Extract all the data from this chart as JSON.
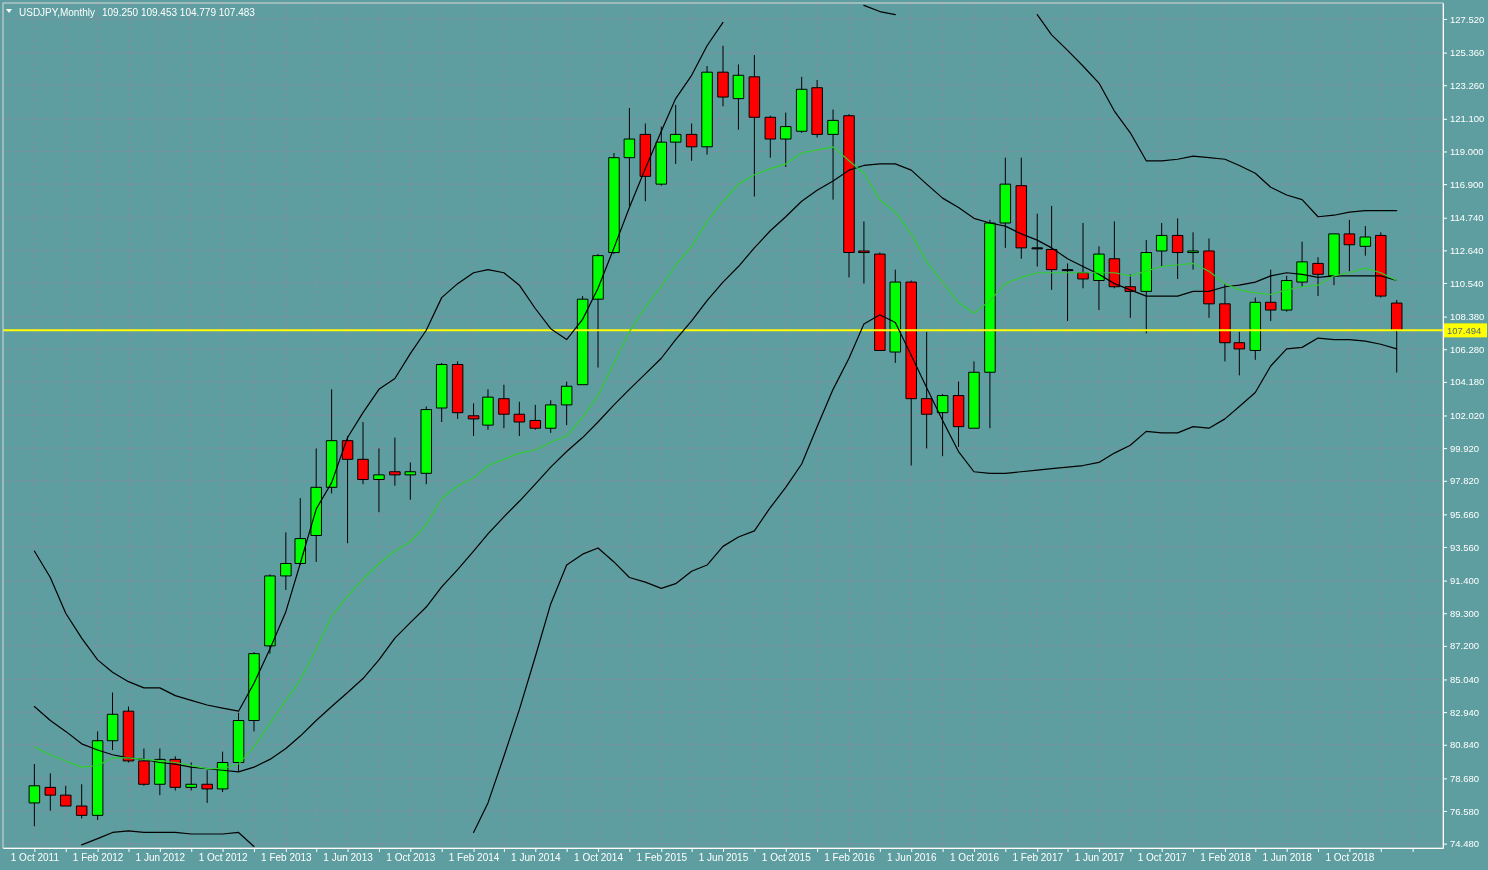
{
  "chart_data": {
    "type": "candlestick",
    "title": "USDJPY,Monthly",
    "subtitle": "109.250 109.453 104.779 107.483",
    "x": [
      "2011-10",
      "2011-11",
      "2011-12",
      "2012-01",
      "2012-02",
      "2012-03",
      "2012-04",
      "2012-05",
      "2012-06",
      "2012-07",
      "2012-08",
      "2012-09",
      "2012-10",
      "2012-11",
      "2012-12",
      "2013-01",
      "2013-02",
      "2013-03",
      "2013-04",
      "2013-05",
      "2013-06",
      "2013-07",
      "2013-08",
      "2013-09",
      "2013-10",
      "2013-11",
      "2013-12",
      "2014-01",
      "2014-02",
      "2014-03",
      "2014-04",
      "2014-05",
      "2014-06",
      "2014-07",
      "2014-08",
      "2014-09",
      "2014-10",
      "2014-11",
      "2014-12",
      "2015-01",
      "2015-02",
      "2015-03",
      "2015-04",
      "2015-05",
      "2015-06",
      "2015-07",
      "2015-08",
      "2015-09",
      "2015-10",
      "2015-11",
      "2015-12",
      "2016-01",
      "2016-02",
      "2016-03",
      "2016-04",
      "2016-05",
      "2016-06",
      "2016-07",
      "2016-08",
      "2016-09",
      "2016-10",
      "2016-11",
      "2016-12",
      "2017-01",
      "2017-02",
      "2017-03",
      "2017-04",
      "2017-05",
      "2017-06",
      "2017-07",
      "2017-08",
      "2017-09",
      "2017-10",
      "2017-11",
      "2017-12",
      "2018-01",
      "2018-02",
      "2018-03",
      "2018-04",
      "2018-05",
      "2018-06",
      "2018-07",
      "2018-08",
      "2018-09",
      "2018-10",
      "2018-11",
      "2018-12",
      "2019-01"
    ],
    "ohlc": [
      [
        77.1,
        79.6,
        75.6,
        78.2
      ],
      [
        78.1,
        79.0,
        76.6,
        77.6
      ],
      [
        77.6,
        78.2,
        76.9,
        76.9
      ],
      [
        76.9,
        78.3,
        76.1,
        76.3
      ],
      [
        76.3,
        81.7,
        76.0,
        81.1
      ],
      [
        81.1,
        84.2,
        80.5,
        82.8
      ],
      [
        83.0,
        83.3,
        79.7,
        79.8
      ],
      [
        79.8,
        80.6,
        78.2,
        78.3
      ],
      [
        78.3,
        80.6,
        77.6,
        79.9
      ],
      [
        79.9,
        80.1,
        77.9,
        78.1
      ],
      [
        78.1,
        79.7,
        77.9,
        78.3
      ],
      [
        78.3,
        79.2,
        77.1,
        78.0
      ],
      [
        78.0,
        80.4,
        77.8,
        79.7
      ],
      [
        79.7,
        82.9,
        79.1,
        82.4
      ],
      [
        82.4,
        86.8,
        81.7,
        86.7
      ],
      [
        87.2,
        91.8,
        86.7,
        91.7
      ],
      [
        91.7,
        94.5,
        90.8,
        92.5
      ],
      [
        92.5,
        96.7,
        92.4,
        94.1
      ],
      [
        94.3,
        99.9,
        92.6,
        97.4
      ],
      [
        97.4,
        103.7,
        97.0,
        100.4
      ],
      [
        100.4,
        100.7,
        93.8,
        99.2
      ],
      [
        99.2,
        101.6,
        97.6,
        97.9
      ],
      [
        97.9,
        99.9,
        95.8,
        98.2
      ],
      [
        98.4,
        100.6,
        97.5,
        98.2
      ],
      [
        98.2,
        99.0,
        96.6,
        98.4
      ],
      [
        98.3,
        102.6,
        97.6,
        102.4
      ],
      [
        102.5,
        105.4,
        101.6,
        105.3
      ],
      [
        105.3,
        105.5,
        101.8,
        102.2
      ],
      [
        102.0,
        102.8,
        100.7,
        101.8
      ],
      [
        101.4,
        103.7,
        101.1,
        103.2
      ],
      [
        103.1,
        104.0,
        101.2,
        102.1
      ],
      [
        102.1,
        102.9,
        100.7,
        101.6
      ],
      [
        101.7,
        102.7,
        101.1,
        101.2
      ],
      [
        101.2,
        103.0,
        100.9,
        102.7
      ],
      [
        102.7,
        104.2,
        101.4,
        103.9
      ],
      [
        104.0,
        109.7,
        104.0,
        109.5
      ],
      [
        109.5,
        112.4,
        105.1,
        112.3
      ],
      [
        112.5,
        118.9,
        112.4,
        118.6
      ],
      [
        118.6,
        121.8,
        115.5,
        119.8
      ],
      [
        120.1,
        120.8,
        115.8,
        117.4
      ],
      [
        116.9,
        120.6,
        116.8,
        119.6
      ],
      [
        119.6,
        122.0,
        118.2,
        120.1
      ],
      [
        120.1,
        120.8,
        118.4,
        119.3
      ],
      [
        119.3,
        124.5,
        118.8,
        124.1
      ],
      [
        124.1,
        125.8,
        121.9,
        122.5
      ],
      [
        122.4,
        124.6,
        120.4,
        123.9
      ],
      [
        123.8,
        125.2,
        116.1,
        121.2
      ],
      [
        121.2,
        121.3,
        118.6,
        119.8
      ],
      [
        119.8,
        121.5,
        118.0,
        120.6
      ],
      [
        120.3,
        123.8,
        120.2,
        123.0
      ],
      [
        123.1,
        123.6,
        119.9,
        120.1
      ],
      [
        120.1,
        121.7,
        115.9,
        121.0
      ],
      [
        121.3,
        121.4,
        110.9,
        112.5
      ],
      [
        112.6,
        114.5,
        110.5,
        112.5
      ],
      [
        112.4,
        112.5,
        106.2,
        106.2
      ],
      [
        106.1,
        111.4,
        105.4,
        110.6
      ],
      [
        110.6,
        110.7,
        98.8,
        103.1
      ],
      [
        103.1,
        107.4,
        99.9,
        102.1
      ],
      [
        102.2,
        103.4,
        99.4,
        103.3
      ],
      [
        103.3,
        104.2,
        100.0,
        101.3
      ],
      [
        101.2,
        105.5,
        101.2,
        104.8
      ],
      [
        104.8,
        114.6,
        101.2,
        114.4
      ],
      [
        114.4,
        118.6,
        112.8,
        116.9
      ],
      [
        116.8,
        118.6,
        112.1,
        112.8
      ],
      [
        112.8,
        115.0,
        111.6,
        112.8
      ],
      [
        112.7,
        115.5,
        110.1,
        111.4
      ],
      [
        111.4,
        111.8,
        108.1,
        111.4
      ],
      [
        111.2,
        114.4,
        110.2,
        110.8
      ],
      [
        110.7,
        112.9,
        108.8,
        112.4
      ],
      [
        112.1,
        114.5,
        110.2,
        110.3
      ],
      [
        110.3,
        111.1,
        108.3,
        110.0
      ],
      [
        110.0,
        113.3,
        107.3,
        112.5
      ],
      [
        112.6,
        114.4,
        111.6,
        113.6
      ],
      [
        113.6,
        114.7,
        110.8,
        112.5
      ],
      [
        112.5,
        113.8,
        111.4,
        112.6
      ],
      [
        112.6,
        113.4,
        108.3,
        109.2
      ],
      [
        109.2,
        110.5,
        105.5,
        106.7
      ],
      [
        106.7,
        107.4,
        104.6,
        106.3
      ],
      [
        106.2,
        109.6,
        105.6,
        109.3
      ],
      [
        109.3,
        111.4,
        108.1,
        108.8
      ],
      [
        108.8,
        111.0,
        108.7,
        110.7
      ],
      [
        110.6,
        113.2,
        110.3,
        111.9
      ],
      [
        111.8,
        112.2,
        109.7,
        111.1
      ],
      [
        111.0,
        113.7,
        110.4,
        113.7
      ],
      [
        113.7,
        114.6,
        111.3,
        113.0
      ],
      [
        112.9,
        114.2,
        112.3,
        113.5
      ],
      [
        113.6,
        113.8,
        109.6,
        109.7
      ],
      [
        109.25,
        109.453,
        104.779,
        107.483
      ]
    ],
    "colors": [
      "#00ff00",
      "#ff0000",
      "#ff0000",
      "#ff0000",
      "#00ff00",
      "#00ff00",
      "#ff0000",
      "#ff0000",
      "#00ff00",
      "#ff0000",
      "#00ff00",
      "#ff0000",
      "#00ff00",
      "#00ff00",
      "#00ff00",
      "#00ff00",
      "#00ff00",
      "#00ff00",
      "#00ff00",
      "#00ff00",
      "#ff0000",
      "#ff0000",
      "#00ff00",
      "#ff0000",
      "#00ff00",
      "#00ff00",
      "#00ff00",
      "#ff0000",
      "#ff0000",
      "#00ff00",
      "#ff0000",
      "#ff0000",
      "#ff0000",
      "#00ff00",
      "#00ff00",
      "#00ff00",
      "#00ff00",
      "#00ff00",
      "#00ff00",
      "#ff0000",
      "#00ff00",
      "#00ff00",
      "#ff0000",
      "#00ff00",
      "#ff0000",
      "#00ff00",
      "#ff0000",
      "#ff0000",
      "#00ff00",
      "#00ff00",
      "#ff0000",
      "#00ff00",
      "#ff0000",
      "#ff0000",
      "#ff0000",
      "#00ff00",
      "#ff0000",
      "#ff0000",
      "#00ff00",
      "#ff0000",
      "#00ff00",
      "#00ff00",
      "#00ff00",
      "#ff0000",
      "#000000",
      "#ff0000",
      "#000000",
      "#ff0000",
      "#00ff00",
      "#ff0000",
      "#ff0000",
      "#00ff00",
      "#00ff00",
      "#ff0000",
      "#00ff00",
      "#ff0000",
      "#ff0000",
      "#ff0000",
      "#00ff00",
      "#ff0000",
      "#00ff00",
      "#00ff00",
      "#ff0000",
      "#00ff00",
      "#ff0000",
      "#00ff00",
      "#ff0000",
      "#ff0000"
    ],
    "series": [
      {
        "type": "line",
        "color": "#000000",
        "values": [
          93.3,
          91.6,
          89.3,
          87.7,
          86.3,
          85.5,
          84.9,
          84.5,
          84.5,
          84.0,
          83.7,
          83.4,
          83.2,
          83.0,
          84.8,
          87.0,
          89.4,
          92.5,
          96.0,
          97.7,
          100.6,
          102.2,
          103.7,
          104.4,
          106.0,
          107.5,
          109.6,
          110.5,
          111.2,
          111.4,
          111.2,
          110.4,
          108.9,
          107.6,
          106.9,
          108.2,
          110.2,
          112.8,
          115.4,
          117.9,
          120.3,
          122.4,
          123.9,
          125.8,
          127.3,
          null,
          null,
          null,
          null,
          null,
          null,
          null,
          null,
          128.4,
          128.0,
          127.8,
          null,
          null,
          null,
          null,
          null,
          null,
          null,
          null,
          127.8,
          126.5,
          125.5,
          124.5,
          123.4,
          121.6,
          120.2,
          118.4,
          118.4,
          118.5,
          118.7,
          118.6,
          118.5,
          118.1,
          117.6,
          116.7,
          116.2,
          115.9,
          114.8,
          114.9,
          115.1,
          115.2,
          115.2,
          115.2
        ]
      },
      {
        "type": "line",
        "color": "#000000",
        "values": [
          83.3,
          82.4,
          81.7,
          80.9,
          80.5,
          80.2,
          80.0,
          79.9,
          79.7,
          79.6,
          79.4,
          79.3,
          79.2,
          79.1,
          79.4,
          79.9,
          80.6,
          81.4,
          82.4,
          83.3,
          84.2,
          85.1,
          86.3,
          87.7,
          88.7,
          89.7,
          91.0,
          92.1,
          93.3,
          94.4,
          95.5,
          96.5,
          97.6,
          98.7,
          99.7,
          100.6,
          101.6,
          102.7,
          103.7,
          104.7,
          105.7,
          106.9,
          108.1,
          109.4,
          110.6,
          111.6,
          112.8,
          113.9,
          114.8,
          115.8,
          116.5,
          117.1,
          117.8,
          118.1,
          118.2,
          118.2,
          117.8,
          116.9,
          116.0,
          115.4,
          114.7,
          114.4,
          114.2,
          113.7,
          113.3,
          112.8,
          112.1,
          111.6,
          111.1,
          110.5,
          110.1,
          109.7,
          109.7,
          109.7,
          110.0,
          110.0,
          110.3,
          110.4,
          110.6,
          111.0,
          111.2,
          111.1,
          110.9,
          111.0,
          111.0,
          111.0,
          111.0,
          110.7
        ]
      },
      {
        "type": "line",
        "color": "#000000",
        "values": [
          null,
          null,
          null,
          74.4,
          74.8,
          75.2,
          75.3,
          75.2,
          75.2,
          75.2,
          75.1,
          75.1,
          75.1,
          75.2,
          74.3,
          null,
          null,
          null,
          null,
          null,
          null,
          null,
          null,
          null,
          null,
          null,
          null,
          null,
          75.2,
          77.1,
          80.1,
          83.1,
          86.5,
          89.9,
          92.4,
          93.1,
          93.5,
          92.6,
          91.6,
          91.3,
          90.9,
          91.2,
          92.0,
          92.4,
          93.6,
          94.2,
          94.6,
          96.1,
          97.4,
          98.9,
          101.3,
          103.7,
          105.7,
          107.9,
          108.5,
          108.0,
          105.9,
          103.8,
          101.7,
          99.7,
          98.4,
          98.3,
          98.3,
          98.4,
          98.5,
          98.6,
          98.7,
          98.8,
          99.0,
          99.6,
          100.1,
          101.0,
          100.9,
          100.9,
          101.3,
          101.2,
          101.8,
          102.6,
          103.5,
          105.2,
          106.3,
          106.4,
          107.0,
          106.9,
          106.9,
          106.8,
          106.6,
          106.3
        ]
      },
      {
        "type": "line",
        "color": "#32cd32",
        "values": [
          80.7,
          80.2,
          79.8,
          79.4,
          79.5,
          80.0,
          80.0,
          79.9,
          79.8,
          79.7,
          79.5,
          79.3,
          79.3,
          79.6,
          80.7,
          82.2,
          83.7,
          85.0,
          87.0,
          89.1,
          90.4,
          91.5,
          92.5,
          93.3,
          93.9,
          95.0,
          96.7,
          97.5,
          98.0,
          98.8,
          99.2,
          99.6,
          99.8,
          100.3,
          100.7,
          101.9,
          103.3,
          105.4,
          107.4,
          109.0,
          110.3,
          111.7,
          112.9,
          114.5,
          115.8,
          116.9,
          117.5,
          117.9,
          118.2,
          118.9,
          119.1,
          119.3,
          118.4,
          117.6,
          115.9,
          115.1,
          113.7,
          111.9,
          110.6,
          109.3,
          108.6,
          109.4,
          110.5,
          110.9,
          111.2,
          111.2,
          111.2,
          111.2,
          111.2,
          111.2,
          111.0,
          111.3,
          111.6,
          111.7,
          111.8,
          111.3,
          110.5,
          110.1,
          109.9,
          109.8,
          110.1,
          110.3,
          110.4,
          111.0,
          111.2,
          111.5,
          111.2,
          110.7
        ]
      }
    ],
    "xlim": [
      "2011-08",
      "2019-04"
    ],
    "xticks": [
      {
        "value": "2011-10",
        "label": "1 Oct 2011"
      },
      {
        "value": "2011-12",
        "label": null
      },
      {
        "value": "2012-02",
        "label": "1 Feb 2012"
      },
      {
        "value": "2012-04",
        "label": null
      },
      {
        "value": "2012-06",
        "label": "1 Jun 2012"
      },
      {
        "value": "2012-08",
        "label": null
      },
      {
        "value": "2012-10",
        "label": "1 Oct 2012"
      },
      {
        "value": "2012-12",
        "label": null
      },
      {
        "value": "2013-02",
        "label": "1 Feb 2013"
      },
      {
        "value": "2013-04",
        "label": null
      },
      {
        "value": "2013-06",
        "label": "1 Jun 2013"
      },
      {
        "value": "2013-08",
        "label": null
      },
      {
        "value": "2013-10",
        "label": "1 Oct 2013"
      },
      {
        "value": "2013-12",
        "label": null
      },
      {
        "value": "2014-02",
        "label": "1 Feb 2014"
      },
      {
        "value": "2014-04",
        "label": null
      },
      {
        "value": "2014-06",
        "label": "1 Jun 2014"
      },
      {
        "value": "2014-08",
        "label": null
      },
      {
        "value": "2014-10",
        "label": "1 Oct 2014"
      },
      {
        "value": "2014-12",
        "label": null
      },
      {
        "value": "2015-02",
        "label": "1 Feb 2015"
      },
      {
        "value": "2015-04",
        "label": null
      },
      {
        "value": "2015-06",
        "label": "1 Jun 2015"
      },
      {
        "value": "2015-08",
        "label": null
      },
      {
        "value": "2015-10",
        "label": "1 Oct 2015"
      },
      {
        "value": "2015-12",
        "label": null
      },
      {
        "value": "2016-02",
        "label": "1 Feb 2016"
      },
      {
        "value": "2016-04",
        "label": null
      },
      {
        "value": "2016-06",
        "label": "1 Jun 2016"
      },
      {
        "value": "2016-08",
        "label": null
      },
      {
        "value": "2016-10",
        "label": "1 Oct 2016"
      },
      {
        "value": "2016-12",
        "label": null
      },
      {
        "value": "2017-02",
        "label": "1 Feb 2017"
      },
      {
        "value": "2017-04",
        "label": null
      },
      {
        "value": "2017-06",
        "label": "1 Jun 2017"
      },
      {
        "value": "2017-08",
        "label": null
      },
      {
        "value": "2017-10",
        "label": "1 Oct 2017"
      },
      {
        "value": "2017-12",
        "label": null
      },
      {
        "value": "2018-02",
        "label": "1 Feb 2018"
      },
      {
        "value": "2018-04",
        "label": null
      },
      {
        "value": "2018-06",
        "label": "1 Jun 2018"
      },
      {
        "value": "2018-08",
        "label": null
      },
      {
        "value": "2018-10",
        "label": "1 Oct 2018"
      },
      {
        "value": "2018-12",
        "label": null
      },
      {
        "value": "2019-02",
        "label": null
      }
    ],
    "ylim": [
      74.2,
      128.55
    ],
    "yticks": [
      {
        "value": 127.52,
        "label": "127.520"
      },
      {
        "value": 125.36,
        "label": "125.360"
      },
      {
        "value": 123.26,
        "label": "123.260"
      },
      {
        "value": 121.1,
        "label": "121.100"
      },
      {
        "value": 119.0,
        "label": "119.000"
      },
      {
        "value": 116.9,
        "label": "116.900"
      },
      {
        "value": 114.74,
        "label": "114.740"
      },
      {
        "value": 112.64,
        "label": "112.640"
      },
      {
        "value": 110.54,
        "label": "110.540"
      },
      {
        "value": 108.38,
        "label": "108.380"
      },
      {
        "value": 106.28,
        "label": "106.280"
      },
      {
        "value": 104.18,
        "label": "104.180"
      },
      {
        "value": 102.02,
        "label": "102.020"
      },
      {
        "value": 99.92,
        "label": "99.920"
      },
      {
        "value": 97.82,
        "label": "97.820"
      },
      {
        "value": 95.66,
        "label": "95.660"
      },
      {
        "value": 93.56,
        "label": "93.560"
      },
      {
        "value": 91.4,
        "label": "91.400"
      },
      {
        "value": 89.3,
        "label": "89.300"
      },
      {
        "value": 87.2,
        "label": "87.200"
      },
      {
        "value": 85.04,
        "label": "85.040"
      },
      {
        "value": 82.94,
        "label": "82.940"
      },
      {
        "value": 80.84,
        "label": "80.840"
      },
      {
        "value": 78.68,
        "label": "78.680"
      },
      {
        "value": 76.58,
        "label": "76.580"
      },
      {
        "value": 74.48,
        "label": "74.480"
      }
    ],
    "grid": true,
    "ref_lines": [
      {
        "axis": "y",
        "value": 107.494,
        "label": "107.494",
        "color": "#ffff00"
      }
    ]
  }
}
